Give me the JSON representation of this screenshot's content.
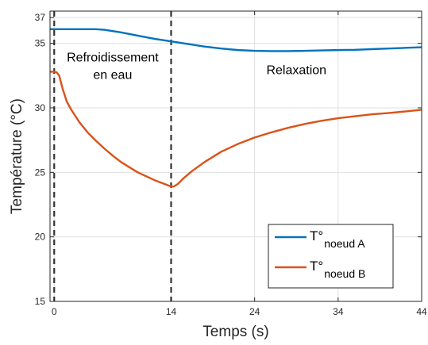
{
  "chart_data": {
    "type": "line",
    "xlabel": "Temps (s)",
    "ylabel": "Température (°C)",
    "xlim": [
      -0.5,
      44
    ],
    "ylim": [
      15,
      37.5
    ],
    "xticks": [
      0,
      14,
      24,
      34,
      44
    ],
    "yticks": [
      15,
      20,
      25,
      30,
      35,
      37
    ],
    "grid": true,
    "legend_position": "bottom-right",
    "vlines": [
      0,
      14
    ],
    "annotations": [
      {
        "lines": [
          "Refroidissement",
          "en eau"
        ],
        "x": 7,
        "y": 33.6
      },
      {
        "lines": [
          "Relaxation"
        ],
        "x": 29,
        "y": 32.6
      }
    ],
    "series": [
      {
        "name_main": "T°",
        "name_sub": "noeud A",
        "color": "#0072BD",
        "x": [
          -0.5,
          0,
          2,
          4,
          5,
          6,
          8,
          10,
          12,
          14,
          16,
          18,
          20,
          22,
          24,
          26,
          28,
          30,
          32,
          34,
          36,
          38,
          40,
          42,
          44
        ],
        "y": [
          36.1,
          36.1,
          36.1,
          36.1,
          36.1,
          36.05,
          35.85,
          35.6,
          35.35,
          35.15,
          34.95,
          34.75,
          34.6,
          34.48,
          34.42,
          34.4,
          34.4,
          34.42,
          34.45,
          34.48,
          34.5,
          34.55,
          34.6,
          34.65,
          34.7
        ]
      },
      {
        "name_main": "T°",
        "name_sub": "noeud B",
        "color": "#D95319",
        "x": [
          -0.5,
          0,
          0.3,
          0.6,
          1,
          1.5,
          2,
          3,
          4,
          5,
          6,
          7,
          8,
          9,
          10,
          11,
          12,
          13,
          13.8,
          14,
          14.3,
          14.8,
          15.5,
          16.5,
          18,
          20,
          22,
          24,
          26,
          28,
          30,
          32,
          34,
          36,
          38,
          40,
          42,
          44
        ],
        "y": [
          32.8,
          32.8,
          32.75,
          32.5,
          31.5,
          30.5,
          29.9,
          28.9,
          28.1,
          27.45,
          26.85,
          26.3,
          25.8,
          25.4,
          25.0,
          24.7,
          24.4,
          24.15,
          23.95,
          23.9,
          23.9,
          24.1,
          24.55,
          25.1,
          25.8,
          26.6,
          27.2,
          27.7,
          28.1,
          28.45,
          28.75,
          29.0,
          29.2,
          29.35,
          29.5,
          29.6,
          29.72,
          29.85
        ]
      }
    ]
  }
}
